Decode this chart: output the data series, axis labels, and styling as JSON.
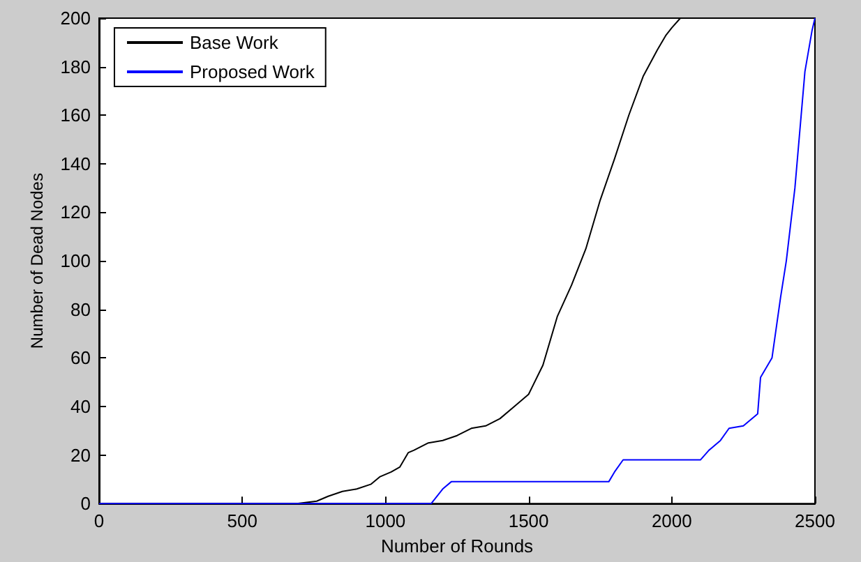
{
  "chart_data": {
    "type": "line",
    "xlabel": "Number of Rounds",
    "ylabel": "Number of Dead Nodes",
    "xlim": [
      0,
      2500
    ],
    "xticks": [
      0,
      500,
      1000,
      1500,
      2000,
      2500
    ],
    "ylim": [
      0,
      200
    ],
    "yticks": [
      0,
      20,
      40,
      60,
      80,
      100,
      120,
      140,
      160,
      180,
      200
    ],
    "grid": false,
    "legend": "top left",
    "marker": "none",
    "line_style": "solid",
    "series": [
      {
        "name": "Base Work",
        "color": "#000000",
        "x": [
          0,
          690,
          760,
          800,
          850,
          900,
          950,
          980,
          1020,
          1050,
          1080,
          1100,
          1150,
          1200,
          1250,
          1300,
          1350,
          1400,
          1450,
          1500,
          1550,
          1600,
          1650,
          1700,
          1750,
          1800,
          1850,
          1900,
          1950,
          1980,
          2000,
          2030
        ],
        "values": [
          0,
          0,
          1,
          3,
          5,
          6,
          8,
          11,
          13,
          15,
          21,
          22,
          25,
          26,
          28,
          31,
          32,
          35,
          40,
          45,
          57,
          77,
          90,
          105,
          125,
          142,
          160,
          176,
          187,
          193,
          196,
          200
        ]
      },
      {
        "name": "Proposed Work",
        "color": "#0000ff",
        "x": [
          0,
          1160,
          1200,
          1230,
          1780,
          1800,
          1830,
          2100,
          2130,
          2170,
          2200,
          2250,
          2300,
          2310,
          2350,
          2380,
          2400,
          2430,
          2465,
          2490,
          2500
        ],
        "values": [
          0,
          0,
          6,
          9,
          9,
          13,
          18,
          18,
          22,
          26,
          31,
          32,
          37,
          52,
          60,
          85,
          100,
          130,
          178,
          195,
          200
        ]
      }
    ]
  }
}
